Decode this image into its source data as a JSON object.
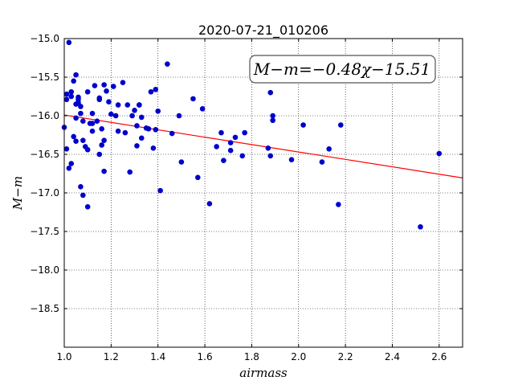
{
  "chart_data": {
    "type": "scatter",
    "title": "2020-07-21_010206",
    "xlabel": "airmass",
    "ylabel": "M−m",
    "xlim": [
      1.0,
      2.7
    ],
    "ylim": [
      -19.0,
      -15.0
    ],
    "y_inverted": true,
    "grid": true,
    "xticks": [
      "1.0",
      "1.2",
      "1.4",
      "1.6",
      "1.8",
      "2.0",
      "2.2",
      "2.4",
      "2.6"
    ],
    "yticks": [
      "−15.0",
      "−15.5",
      "−16.0",
      "−16.5",
      "−17.0",
      "−17.5",
      "−18.0",
      "−18.5"
    ],
    "annotation": "M−m=−0.48χ−15.51",
    "fit_line": {
      "slope": -0.48,
      "intercept": -15.51,
      "color": "#ff0000"
    },
    "point_color": "#0000cc",
    "points": [
      [
        1.0,
        -16.15
      ],
      [
        1.01,
        -16.43
      ],
      [
        1.01,
        -15.72
      ],
      [
        1.01,
        -15.79
      ],
      [
        1.02,
        -15.05
      ],
      [
        1.02,
        -16.68
      ],
      [
        1.03,
        -16.62
      ],
      [
        1.03,
        -15.75
      ],
      [
        1.03,
        -15.69
      ],
      [
        1.04,
        -15.55
      ],
      [
        1.04,
        -16.27
      ],
      [
        1.05,
        -16.33
      ],
      [
        1.05,
        -15.85
      ],
      [
        1.05,
        -15.47
      ],
      [
        1.05,
        -16.03
      ],
      [
        1.06,
        -15.79
      ],
      [
        1.06,
        -15.76
      ],
      [
        1.06,
        -15.83
      ],
      [
        1.07,
        -16.92
      ],
      [
        1.07,
        -15.97
      ],
      [
        1.07,
        -15.88
      ],
      [
        1.08,
        -16.07
      ],
      [
        1.08,
        -16.32
      ],
      [
        1.08,
        -17.03
      ],
      [
        1.09,
        -16.4
      ],
      [
        1.1,
        -17.18
      ],
      [
        1.1,
        -16.44
      ],
      [
        1.1,
        -15.69
      ],
      [
        1.11,
        -16.1
      ],
      [
        1.12,
        -16.2
      ],
      [
        1.12,
        -16.1
      ],
      [
        1.12,
        -15.97
      ],
      [
        1.13,
        -15.61
      ],
      [
        1.14,
        -16.07
      ],
      [
        1.15,
        -15.79
      ],
      [
        1.15,
        -15.77
      ],
      [
        1.15,
        -16.5
      ],
      [
        1.16,
        -16.38
      ],
      [
        1.16,
        -16.17
      ],
      [
        1.17,
        -16.32
      ],
      [
        1.17,
        -16.72
      ],
      [
        1.17,
        -15.6
      ],
      [
        1.18,
        -15.68
      ],
      [
        1.19,
        -15.82
      ],
      [
        1.2,
        -15.98
      ],
      [
        1.21,
        -15.62
      ],
      [
        1.22,
        -16.0
      ],
      [
        1.23,
        -16.2
      ],
      [
        1.23,
        -15.86
      ],
      [
        1.25,
        -15.57
      ],
      [
        1.26,
        -16.22
      ],
      [
        1.27,
        -15.86
      ],
      [
        1.28,
        -16.73
      ],
      [
        1.29,
        -16.0
      ],
      [
        1.3,
        -15.93
      ],
      [
        1.31,
        -16.39
      ],
      [
        1.31,
        -16.13
      ],
      [
        1.32,
        -15.86
      ],
      [
        1.32,
        -15.86
      ],
      [
        1.33,
        -16.02
      ],
      [
        1.33,
        -16.29
      ],
      [
        1.35,
        -16.16
      ],
      [
        1.36,
        -16.17
      ],
      [
        1.37,
        -15.69
      ],
      [
        1.38,
        -16.42
      ],
      [
        1.39,
        -15.66
      ],
      [
        1.39,
        -16.18
      ],
      [
        1.4,
        -15.94
      ],
      [
        1.41,
        -16.97
      ],
      [
        1.44,
        -15.33
      ],
      [
        1.46,
        -16.23
      ],
      [
        1.49,
        -16.0
      ],
      [
        1.5,
        -16.6
      ],
      [
        1.55,
        -15.78
      ],
      [
        1.57,
        -16.8
      ],
      [
        1.59,
        -15.91
      ],
      [
        1.62,
        -17.14
      ],
      [
        1.65,
        -16.4
      ],
      [
        1.67,
        -16.22
      ],
      [
        1.68,
        -16.58
      ],
      [
        1.71,
        -16.35
      ],
      [
        1.71,
        -16.45
      ],
      [
        1.73,
        -16.28
      ],
      [
        1.76,
        -16.52
      ],
      [
        1.77,
        -16.22
      ],
      [
        1.87,
        -16.42
      ],
      [
        1.88,
        -15.7
      ],
      [
        1.88,
        -16.52
      ],
      [
        1.89,
        -16.0
      ],
      [
        1.89,
        -16.06
      ],
      [
        1.97,
        -16.57
      ],
      [
        2.02,
        -16.12
      ],
      [
        2.1,
        -16.6
      ],
      [
        2.13,
        -16.43
      ],
      [
        2.17,
        -17.15
      ],
      [
        2.18,
        -16.12
      ],
      [
        2.52,
        -17.44
      ],
      [
        2.6,
        -16.49
      ]
    ]
  }
}
